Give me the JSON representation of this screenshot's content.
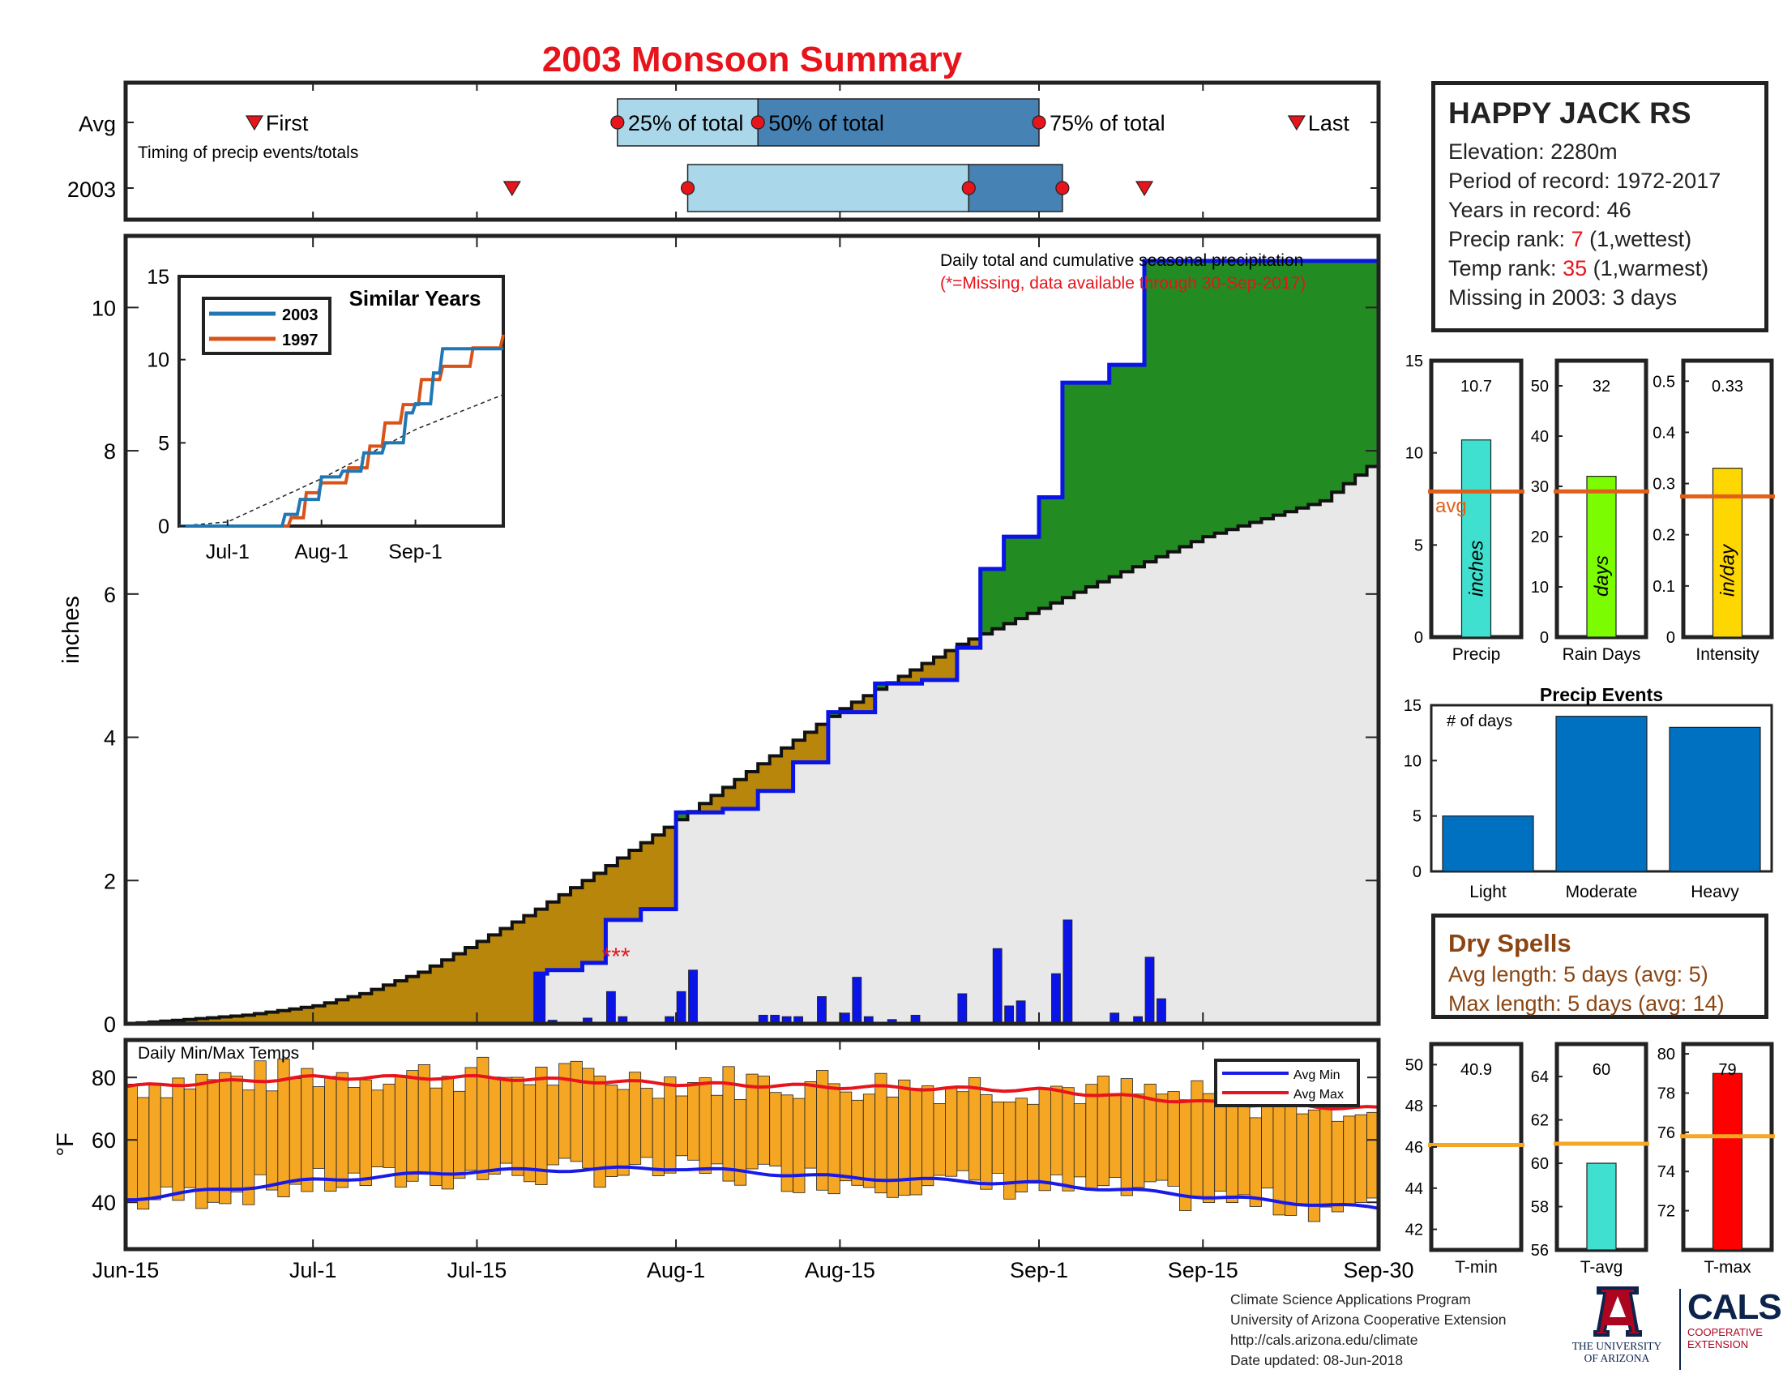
{
  "title": "2003 Monsoon Summary",
  "colors": {
    "title_red": "#e8141c",
    "cum_obs_line": "#0a14e6",
    "surplus_fill": "#228b22",
    "deficit_fill": "#b8860b",
    "avg_area_fill": "#e8e8e8",
    "daily_bar": "#0a14e6",
    "temp_bar": "#f5a623",
    "avg_min_line": "#1a1ae6",
    "avg_max_line": "#e8141c",
    "light_blue": "#aad8ea",
    "mid_blue": "#4682b4",
    "event_bar": "#0070c0",
    "avg_line_orange": "#e0601a",
    "precip_bar": "#40e0d0",
    "raindays_bar": "#7cfc00",
    "intensity_bar": "#ffd700",
    "tavg_bar": "#40e0d0",
    "tmax_bar": "#ff0000"
  },
  "timing_panel": {
    "row_labels": [
      "Avg",
      "2003"
    ],
    "note": "Timing of precip events/totals",
    "first_label": "First",
    "last_label": "Last",
    "pct25_label": "25% of total",
    "pct50_label": "50% of total",
    "pct75_label": "75% of total",
    "avg": {
      "first": "Jun-26",
      "p25": "Jul-27",
      "p50": "Aug-8",
      "p75": "Sep-1",
      "last": "Sep-23"
    },
    "year2003": {
      "first": "Jul-18",
      "p25": "Aug-2",
      "p50": "Aug-26",
      "p75": "Sep-3",
      "last": "Sep-10"
    }
  },
  "main_panel": {
    "annotation_line1": "Daily total and cumulative seasonal precipitation",
    "annotation_line2": "(*=Missing, data available through 30-Sep-2017)",
    "missing_marker": "***",
    "ylabel": "inches",
    "yticks": [
      "0",
      "2",
      "4",
      "6",
      "8",
      "10"
    ],
    "ylim": [
      0,
      11
    ],
    "xticks": [
      "Jun-15",
      "Jul-1",
      "Jul-15",
      "Aug-1",
      "Aug-15",
      "Sep-1",
      "Sep-15",
      "Sep-30"
    ]
  },
  "inset": {
    "title": "Similar Years",
    "legend": [
      "2003",
      "1997"
    ],
    "yticks": [
      "0",
      "5",
      "10",
      "15"
    ],
    "xticks": [
      "Jul-1",
      "Aug-1",
      "Sep-1"
    ]
  },
  "temp_panel": {
    "label": "Daily Min/Max Temps",
    "ylabel": "°F",
    "yticks": [
      "40",
      "60",
      "80"
    ],
    "legend": [
      "Avg Min",
      "Avg Max"
    ]
  },
  "station": {
    "name": "HAPPY JACK RS",
    "elevation": "Elevation: 2280m",
    "period": "Period of record: 1972-2017",
    "years": "Years in record: 46",
    "precip_rank_prefix": "Precip rank: ",
    "precip_rank_value": "7",
    "precip_rank_suffix": " (1,wettest)",
    "temp_rank_prefix": "Temp rank: ",
    "temp_rank_value": "35",
    "temp_rank_suffix": " (1,warmest)",
    "missing": "Missing in 2003: 3 days"
  },
  "summary_bars": {
    "precip": {
      "label": "Precip",
      "value": 10.7,
      "value_text": "10.7",
      "avg": 7.9,
      "unit": "inches",
      "yticks": [
        "0",
        "5",
        "10",
        "15"
      ],
      "ylim": [
        0,
        15
      ],
      "avg_label": "avg"
    },
    "raindays": {
      "label": "Rain Days",
      "value": 32,
      "value_text": "32",
      "avg": 29,
      "unit": "days",
      "yticks": [
        "0",
        "10",
        "20",
        "30",
        "40",
        "50"
      ],
      "ylim": [
        0,
        55
      ]
    },
    "intensity": {
      "label": "Intensity",
      "value": 0.33,
      "value_text": "0.33",
      "avg": 0.275,
      "unit": "in/day",
      "yticks": [
        "0",
        "0.1",
        "0.2",
        "0.3",
        "0.4",
        "0.5"
      ],
      "ylim": [
        0,
        0.54
      ]
    }
  },
  "precip_events": {
    "title": "Precip Events",
    "note": "# of days",
    "categories": [
      "Light",
      "Moderate",
      "Heavy"
    ],
    "values": [
      5,
      14,
      13
    ],
    "yticks": [
      "0",
      "5",
      "10",
      "15"
    ],
    "ylim": [
      0,
      15
    ]
  },
  "dry_spells": {
    "title": "Dry Spells",
    "avg": "Avg length: 5 days (avg: 5)",
    "max": "Max length: 5 days (avg: 14)"
  },
  "temp_bars": {
    "tmin": {
      "label": "T-min",
      "value": 40.9,
      "value_text": "40.9",
      "avg": 46.1,
      "yticks": [
        "42",
        "44",
        "46",
        "48",
        "50"
      ],
      "ylim": [
        41,
        51
      ]
    },
    "tavg": {
      "label": "T-avg",
      "value": 60,
      "value_text": "60",
      "avg": 60.9,
      "yticks": [
        "56",
        "58",
        "60",
        "62",
        "64"
      ],
      "ylim": [
        56,
        65.5
      ]
    },
    "tmax": {
      "label": "T-max",
      "value": 79,
      "value_text": "79",
      "avg": 75.8,
      "yticks": [
        "72",
        "74",
        "76",
        "78",
        "80"
      ],
      "ylim": [
        70,
        80.5
      ]
    }
  },
  "credits": {
    "line1": "Climate Science Applications Program",
    "line2": "University of Arizona Cooperative Extension",
    "line3": "http://cals.arizona.edu/climate",
    "line4": " Date updated: 08-Jun-2018"
  },
  "logos": {
    "ua_line1": "THE UNIVERSITY",
    "ua_line2": "OF ARIZONA",
    "cals": "CALS",
    "coop1": "COOPERATIVE",
    "coop2": "EXTENSION"
  },
  "chart_data": [
    {
      "type": "area",
      "title": "Daily total and cumulative seasonal precipitation",
      "ylabel": "inches",
      "ylim": [
        0,
        11
      ],
      "x_start": "Jun-15",
      "x_end": "Sep-30",
      "avg_cumulative": {
        "x": [
          "Jun-15",
          "Jun-20",
          "Jun-25",
          "Jul-1",
          "Jul-5",
          "Jul-10",
          "Jul-15",
          "Jul-20",
          "Jul-25",
          "Aug-1",
          "Aug-5",
          "Aug-10",
          "Aug-15",
          "Aug-20",
          "Aug-25",
          "Sep-1",
          "Sep-5",
          "Sep-10",
          "Sep-15",
          "Sep-20",
          "Sep-25",
          "Sep-30"
        ],
        "y": [
          0.0,
          0.06,
          0.12,
          0.25,
          0.42,
          0.72,
          1.15,
          1.6,
          2.1,
          2.85,
          3.3,
          3.85,
          4.4,
          4.85,
          5.3,
          5.8,
          6.1,
          6.45,
          6.8,
          7.05,
          7.3,
          7.9
        ]
      },
      "observed_cumulative_2003": {
        "x": [
          "Jun-15",
          "Jul-20",
          "Jul-21",
          "Jul-24",
          "Jul-26",
          "Jul-29",
          "Aug-1",
          "Aug-5",
          "Aug-8",
          "Aug-11",
          "Aug-14",
          "Aug-18",
          "Aug-22",
          "Aug-25",
          "Aug-27",
          "Aug-29",
          "Sep-1",
          "Sep-3",
          "Sep-7",
          "Sep-10",
          "Sep-30"
        ],
        "y": [
          0.0,
          0.7,
          0.75,
          0.85,
          1.45,
          1.6,
          2.95,
          3.0,
          3.25,
          3.65,
          4.35,
          4.75,
          4.8,
          5.25,
          6.35,
          6.8,
          7.35,
          8.95,
          9.2,
          10.65,
          10.7
        ]
      },
      "daily_precip_2003": {
        "x": [
          "Jul-20",
          "Jul-21",
          "Jul-24",
          "Jul-26",
          "Jul-27",
          "Jul-31",
          "Aug-1",
          "Aug-2",
          "Aug-8",
          "Aug-9",
          "Aug-10",
          "Aug-11",
          "Aug-13",
          "Aug-15",
          "Aug-16",
          "Aug-17",
          "Aug-19",
          "Aug-21",
          "Aug-25",
          "Aug-28",
          "Aug-29",
          "Aug-30",
          "Sep-2",
          "Sep-3",
          "Sep-7",
          "Sep-9",
          "Sep-10",
          "Sep-11"
        ],
        "y": [
          0.7,
          0.05,
          0.08,
          0.45,
          0.1,
          0.1,
          0.45,
          0.75,
          0.12,
          0.12,
          0.1,
          0.1,
          0.38,
          0.15,
          0.65,
          0.1,
          0.06,
          0.12,
          0.42,
          1.05,
          0.25,
          0.32,
          0.7,
          1.45,
          0.15,
          0.1,
          0.93,
          0.35
        ]
      },
      "missing_days_marker": "Jul-27"
    },
    {
      "type": "line",
      "title": "Similar Years",
      "series": [
        {
          "name": "2003",
          "x": [
            "Jul-20",
            "Jul-25",
            "Aug-1",
            "Aug-8",
            "Aug-15",
            "Aug-22",
            "Aug-29",
            "Sep-1",
            "Sep-7",
            "Sep-10",
            "Sep-30"
          ],
          "y": [
            0.7,
            1.6,
            2.95,
            3.3,
            4.4,
            5.0,
            6.8,
            7.35,
            9.2,
            10.65,
            10.7
          ]
        },
        {
          "name": "1997",
          "x": [
            "Jul-22",
            "Jul-27",
            "Aug-1",
            "Aug-10",
            "Aug-17",
            "Aug-22",
            "Aug-28",
            "Sep-3",
            "Sep-10",
            "Sep-20",
            "Sep-30"
          ],
          "y": [
            0.5,
            2.0,
            2.6,
            3.5,
            4.8,
            6.2,
            7.3,
            8.8,
            9.6,
            10.7,
            11.5
          ]
        }
      ],
      "avg_dashed": {
        "x": [
          "Jun-15",
          "Jul-1",
          "Aug-1",
          "Sep-1",
          "Sep-30"
        ],
        "y": [
          0.0,
          0.25,
          2.85,
          5.8,
          7.9
        ]
      },
      "ylim": [
        0,
        15
      ]
    },
    {
      "type": "bar",
      "title": "Daily Min/Max Temps",
      "ylabel": "°F",
      "ylim": [
        25,
        92
      ],
      "avg_min": {
        "x": [
          "Jun-15",
          "Jul-1",
          "Jul-15",
          "Aug-1",
          "Aug-15",
          "Sep-1",
          "Sep-15",
          "Sep-30"
        ],
        "y": [
          41,
          47,
          50,
          51,
          48,
          46,
          42,
          38
        ]
      },
      "avg_max": {
        "x": [
          "Jun-15",
          "Jul-1",
          "Jul-15",
          "Aug-1",
          "Aug-15",
          "Sep-1",
          "Sep-15",
          "Sep-30"
        ],
        "y": [
          77,
          80,
          80,
          78,
          77,
          76,
          72,
          70
        ]
      }
    },
    {
      "type": "bar",
      "title": "Precip Events",
      "categories": [
        "Light",
        "Moderate",
        "Heavy"
      ],
      "values": [
        5,
        14,
        13
      ],
      "ylim": [
        0,
        15
      ]
    }
  ]
}
